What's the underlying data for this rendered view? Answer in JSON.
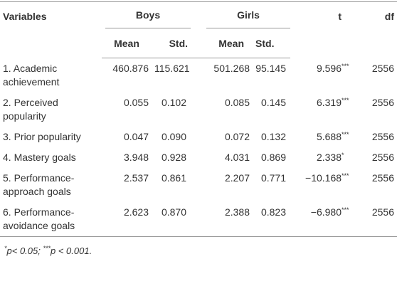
{
  "table": {
    "headers": {
      "variables": "Variables",
      "boys": "Boys",
      "girls": "Girls",
      "t": "t",
      "df": "df"
    },
    "subheaders": [
      "Mean",
      "Std.",
      "Mean",
      "Std."
    ],
    "rows": [
      [
        "1. Academic achievement",
        "460.876",
        "115.621",
        "501.268",
        "95.145",
        "9.596",
        "***",
        "2556"
      ],
      [
        "2. Perceived popularity",
        "0.055",
        "0.102",
        "0.085",
        "0.145",
        "6.319",
        "***",
        "2556"
      ],
      [
        "3. Prior popularity",
        "0.047",
        "0.090",
        "0.072",
        "0.132",
        "5.688",
        "***",
        "2556"
      ],
      [
        "4. Mastery goals",
        "3.948",
        "0.928",
        "4.031",
        "0.869",
        "2.338",
        "*",
        "2556"
      ],
      [
        "5. Performance-approach goals",
        "2.537",
        "0.861",
        "2.207",
        "0.771",
        "−10.168",
        "***",
        "2556"
      ],
      [
        "6. Performance-avoidance goals",
        "2.623",
        "0.870",
        "2.388",
        "0.823",
        "−6.980",
        "***",
        "2556"
      ]
    ]
  },
  "footnote": [
    "*",
    "p< 0.05; ",
    "***",
    "p < 0.001."
  ]
}
